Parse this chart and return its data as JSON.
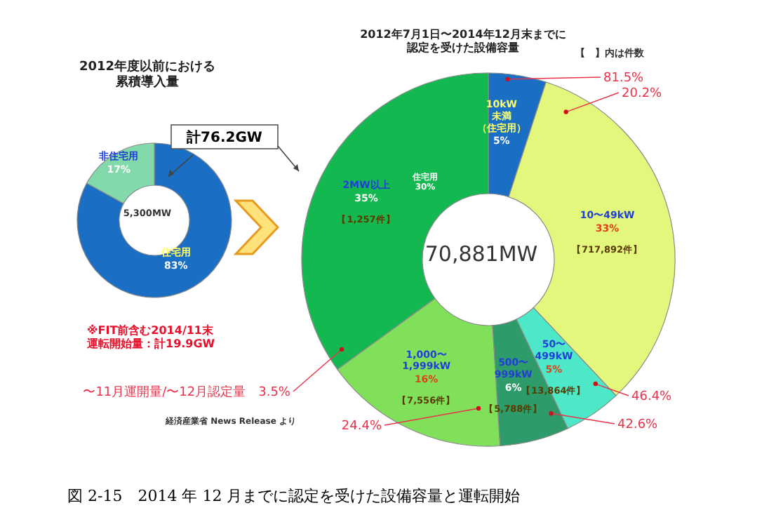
{
  "chart_data": [
    {
      "type": "donut",
      "title": "2012年度以前における累積導入量",
      "categories": [
        "住宅用",
        "非住宅用"
      ],
      "values": [
        83,
        17
      ],
      "value_labels": [
        "83%",
        "17%"
      ],
      "colors": [
        "#1a6fc4",
        "#82d9aa"
      ],
      "annotations": [
        "5,300MW",
        "計76.2GW",
        "※FIT前含む2014/11末運転開始量：計19.9GW",
        "経済産業省 News Release より",
        "図 2-15　2014 年 12 月までに認定を受けた設備容量と運転開始"
      ]
    },
    {
      "type": "donut",
      "title": "2012年7月1日〜2014年12月末までに認定を受けた設備容量",
      "categories": [
        "10kW未満（住宅用）",
        "10〜49kW",
        "50〜\n499kW",
        "500〜\n999kW",
        "1,000〜\n1,999kW",
        "2MW以上"
      ],
      "values": [
        5,
        33,
        5,
        6,
        16,
        35
      ],
      "value_labels": [
        "5%",
        "33%",
        "5%",
        "6%",
        "16%",
        "35%"
      ],
      "colors": [
        "#1a6fc4",
        "#e2f77c",
        "#4de8c8",
        "#2e9b6a",
        "#80e05a",
        "#14b850"
      ],
      "annotations": [
        "70,881MW",
        "【　】内は件数",
        "住宅用\n30%",
        {
          "text": "【717,892件】",
          "x": "10〜49kW"
        },
        {
          "text": "【13,864件】",
          "x": "50〜\n499kW"
        },
        {
          "text": "【5,788件】",
          "x": "500〜\n999kW"
        },
        {
          "text": "【7,556件】",
          "x": "1,000〜\n1,999kW"
        },
        {
          "text": "【1,257件】",
          "x": "2MW以上"
        },
        {
          "text": "81.5%",
          "x": "10kW未満（住宅用）"
        },
        {
          "text": "20.2%",
          "x": "10〜49kW"
        },
        {
          "text": "46.4%",
          "x": "50〜\n499kW"
        },
        {
          "text": "42.6%",
          "x": "500〜\n999kW"
        },
        {
          "text": "24.4%",
          "x": "1,000〜\n1,999kW"
        },
        {
          "text": "〜11月運開量/〜12月認定量　3.5%",
          "x": "2MW以上"
        }
      ]
    }
  ]
}
